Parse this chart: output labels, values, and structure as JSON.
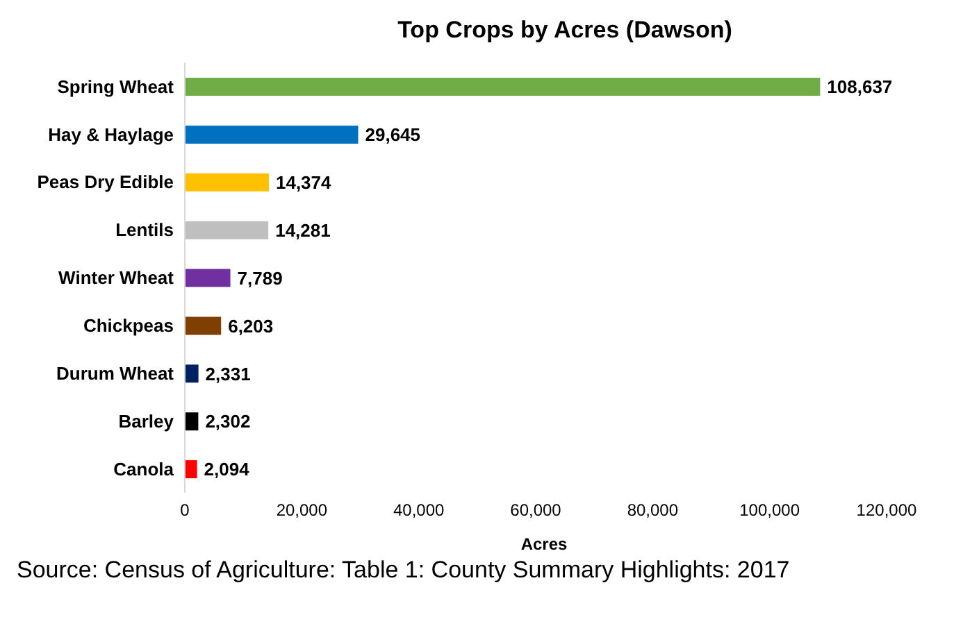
{
  "chart_data": {
    "type": "bar",
    "orientation": "horizontal",
    "title": "Top Crops by Acres (Dawson)",
    "xlabel": "Acres",
    "categories": [
      "Spring Wheat",
      "Hay & Haylage",
      "Peas Dry Edible",
      "Lentils",
      "Winter Wheat",
      "Chickpeas",
      "Durum Wheat",
      "Barley",
      "Canola"
    ],
    "values": [
      108637,
      29645,
      14374,
      14281,
      7789,
      6203,
      2331,
      2302,
      2094
    ],
    "value_labels": [
      "108,637",
      "29,645",
      "14,374",
      "14,281",
      "7,789",
      "6,203",
      "2,331",
      "2,302",
      "2,094"
    ],
    "colors": [
      "#70ad47",
      "#0070c0",
      "#ffc000",
      "#bfbfbf",
      "#7030a0",
      "#7f3f00",
      "#002060",
      "#000000",
      "#ff0000"
    ],
    "xlim": [
      0,
      120000
    ],
    "xticks": [
      {
        "value": 0,
        "label": "0"
      },
      {
        "value": 20000,
        "label": "20,000"
      },
      {
        "value": 40000,
        "label": "40,000"
      },
      {
        "value": 60000,
        "label": "60,000"
      },
      {
        "value": 80000,
        "label": "80,000"
      },
      {
        "value": 100000,
        "label": "100,000"
      },
      {
        "value": 120000,
        "label": "120,000"
      }
    ],
    "grid": false,
    "legend": false,
    "annotations": [
      "Source: Census of Agriculture: Table 1: County Summary Highlights: 2017"
    ]
  }
}
